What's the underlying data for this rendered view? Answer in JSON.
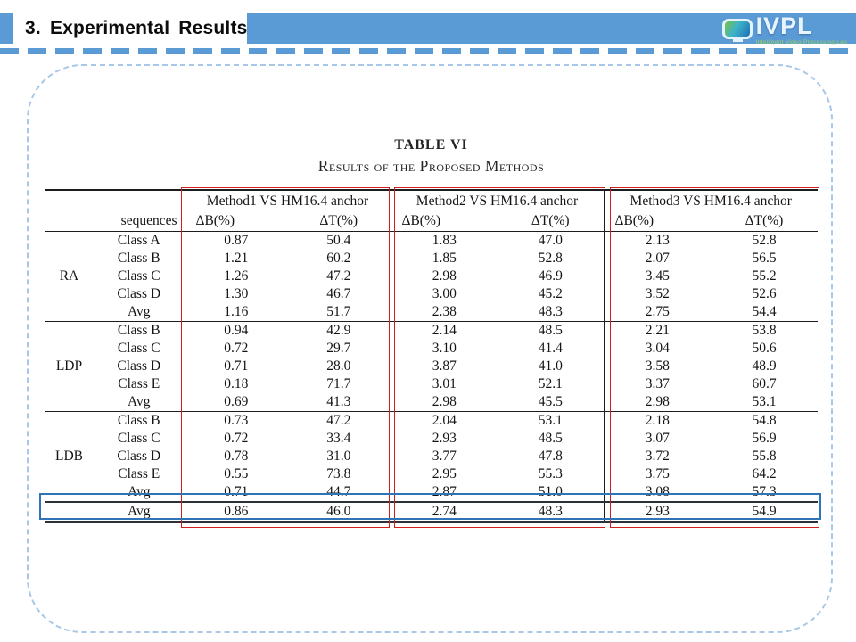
{
  "slide": {
    "title": "3. Experimental Results"
  },
  "logo": {
    "name": "IVPL",
    "caption": "Intelligent Video Processing Lab"
  },
  "colors": {
    "accent_blue": "#5b9bd5",
    "frame_dash_blue": "#a9c7e8"
  },
  "table": {
    "caption_line1": "TABLE VI",
    "caption_line2": "Results of the Proposed Methods",
    "col_groups": [
      "Method1 VS HM16.4 anchor",
      "Method2 VS HM16.4 anchor",
      "Method3 VS HM16.4 anchor"
    ],
    "subheaders": {
      "sequences": "sequences",
      "delta_b": "ΔB(%)",
      "delta_t": "ΔT(%)"
    },
    "groups": [
      {
        "label": "RA",
        "rows": [
          {
            "seq": "Class A",
            "v": [
              "0.87",
              "50.4",
              "1.83",
              "47.0",
              "2.13",
              "52.8"
            ]
          },
          {
            "seq": "Class B",
            "v": [
              "1.21",
              "60.2",
              "1.85",
              "52.8",
              "2.07",
              "56.5"
            ]
          },
          {
            "seq": "Class C",
            "v": [
              "1.26",
              "47.2",
              "2.98",
              "46.9",
              "3.45",
              "55.2"
            ]
          },
          {
            "seq": "Class D",
            "v": [
              "1.30",
              "46.7",
              "3.00",
              "45.2",
              "3.52",
              "52.6"
            ]
          },
          {
            "seq": "Avg",
            "v": [
              "1.16",
              "51.7",
              "2.38",
              "48.3",
              "2.75",
              "54.4"
            ]
          }
        ]
      },
      {
        "label": "LDP",
        "rows": [
          {
            "seq": "Class B",
            "v": [
              "0.94",
              "42.9",
              "2.14",
              "48.5",
              "2.21",
              "53.8"
            ]
          },
          {
            "seq": "Class C",
            "v": [
              "0.72",
              "29.7",
              "3.10",
              "41.4",
              "3.04",
              "50.6"
            ]
          },
          {
            "seq": "Class D",
            "v": [
              "0.71",
              "28.0",
              "3.87",
              "41.0",
              "3.58",
              "48.9"
            ]
          },
          {
            "seq": "Class E",
            "v": [
              "0.18",
              "71.7",
              "3.01",
              "52.1",
              "3.37",
              "60.7"
            ]
          },
          {
            "seq": "Avg",
            "v": [
              "0.69",
              "41.3",
              "2.98",
              "45.5",
              "2.98",
              "53.1"
            ]
          }
        ]
      },
      {
        "label": "LDB",
        "rows": [
          {
            "seq": "Class B",
            "v": [
              "0.73",
              "47.2",
              "2.04",
              "53.1",
              "2.18",
              "54.8"
            ]
          },
          {
            "seq": "Class C",
            "v": [
              "0.72",
              "33.4",
              "2.93",
              "48.5",
              "3.07",
              "56.9"
            ]
          },
          {
            "seq": "Class D",
            "v": [
              "0.78",
              "31.0",
              "3.77",
              "47.8",
              "3.72",
              "55.8"
            ]
          },
          {
            "seq": "Class E",
            "v": [
              "0.55",
              "73.8",
              "2.95",
              "55.3",
              "3.75",
              "64.2"
            ]
          },
          {
            "seq": "Avg",
            "v": [
              "0.71",
              "44.7",
              "2.87",
              "51.0",
              "3.08",
              "57.3"
            ]
          }
        ]
      }
    ],
    "footer": {
      "seq": "Avg",
      "v": [
        "0.86",
        "46.0",
        "2.74",
        "48.3",
        "2.93",
        "54.9"
      ]
    },
    "highlight_colors": {
      "method_box": "#cf1d1d",
      "avg_box": "#2e74b6"
    }
  }
}
